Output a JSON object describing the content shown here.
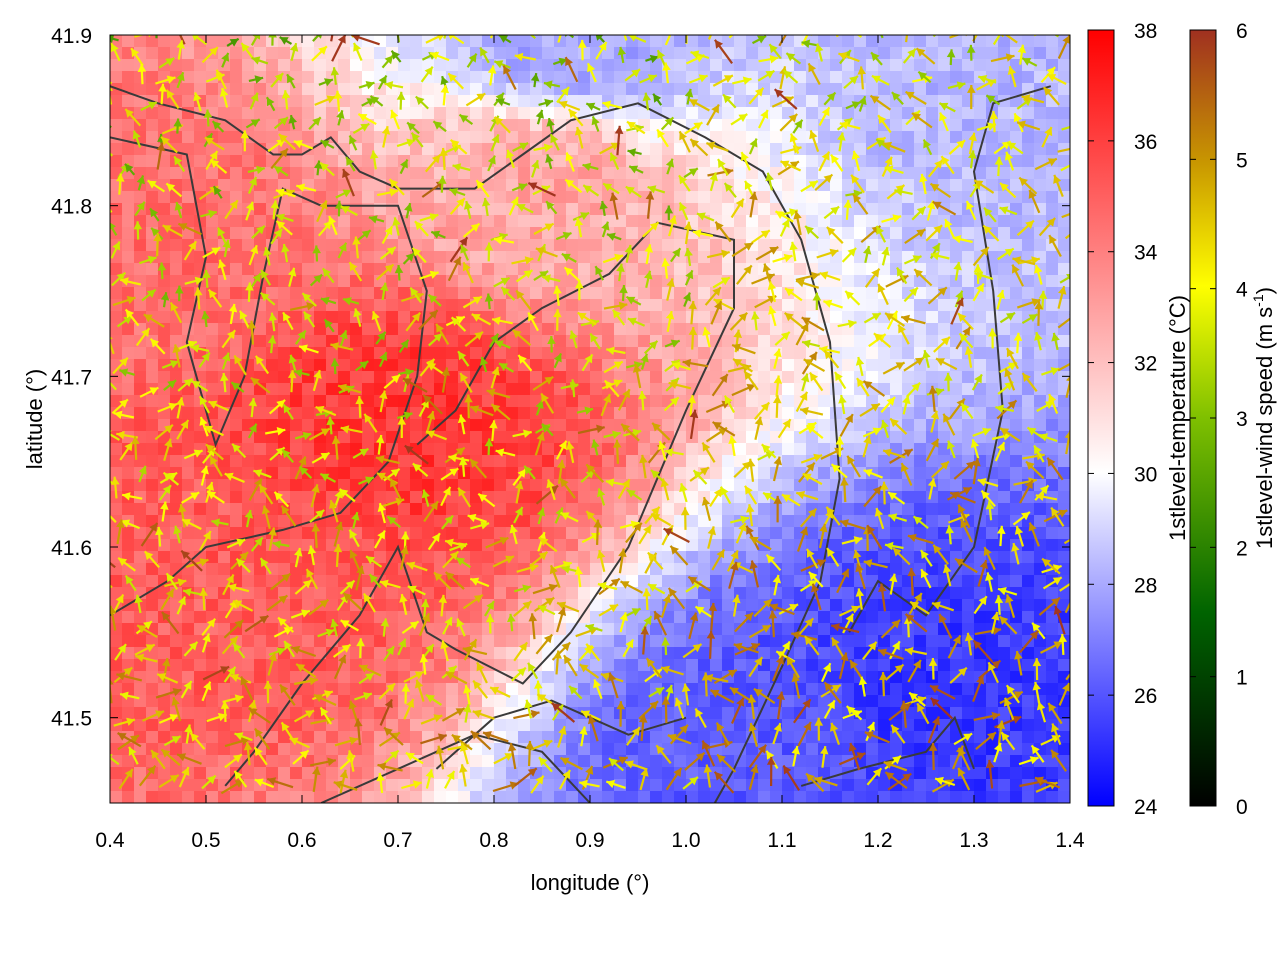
{
  "chart_data": {
    "type": "heatmap",
    "xlabel": "longitude (°)",
    "ylabel": "latitude (°)",
    "xlim": [
      0.4,
      1.4
    ],
    "ylim": [
      41.45,
      41.9
    ],
    "x_ticks": [
      "0.4",
      "0.5",
      "0.6",
      "0.7",
      "0.8",
      "0.9",
      "1.0",
      "1.1",
      "1.2",
      "1.3",
      "1.4"
    ],
    "y_ticks": [
      "41.5",
      "41.6",
      "41.7",
      "41.8",
      "41.9"
    ],
    "overlay": "wind vectors colored by speed, with coastline/boundary contour lines",
    "temperature_colorbar": {
      "label": "1stlevel-temperature (°C)",
      "range": [
        24,
        38
      ],
      "ticks": [
        "24",
        "26",
        "28",
        "30",
        "32",
        "34",
        "36",
        "38"
      ],
      "colors": [
        "#0000ff",
        "#ffffff",
        "#ff0000"
      ]
    },
    "wind_colorbar": {
      "label_main": "1stlevel-wind speed (m s",
      "label_sup": "-1",
      "label_end": ")",
      "range": [
        0,
        6
      ],
      "ticks": [
        "0",
        "1",
        "2",
        "3",
        "4",
        "5",
        "6"
      ],
      "colors": [
        "#000000",
        "#006400",
        "#7fc000",
        "#ffff00",
        "#c89600",
        "#a03020"
      ]
    },
    "temperature_field_hotspots": [
      {
        "lon": 0.7,
        "lat": 41.67,
        "temp": 36.5
      },
      {
        "lon": 0.55,
        "lat": 41.58,
        "temp": 35.5
      },
      {
        "lon": 0.45,
        "lat": 41.78,
        "temp": 35.0
      },
      {
        "lon": 0.85,
        "lat": 41.82,
        "temp": 33.5
      },
      {
        "lon": 1.25,
        "lat": 41.5,
        "temp": 25.5
      },
      {
        "lon": 1.1,
        "lat": 41.47,
        "temp": 26.5
      },
      {
        "lon": 0.88,
        "lat": 41.89,
        "temp": 28.5
      },
      {
        "lon": 1.35,
        "lat": 41.88,
        "temp": 29.0
      }
    ]
  }
}
